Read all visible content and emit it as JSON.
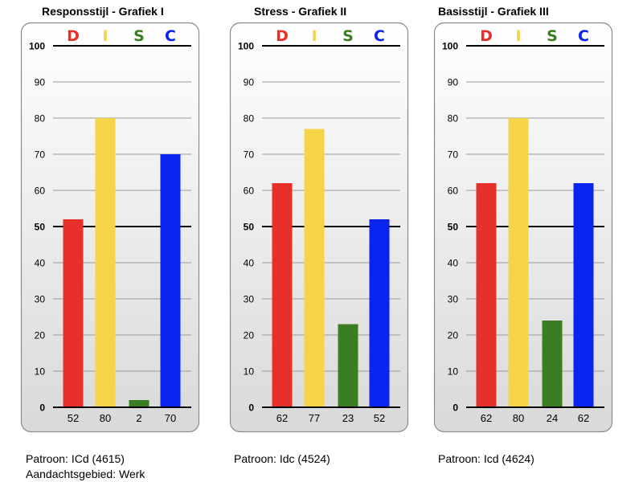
{
  "chart_data": [
    {
      "type": "bar",
      "title": "Responsstijl - Grafiek I",
      "categories": [
        "D",
        "I",
        "S",
        "C"
      ],
      "values": [
        52,
        80,
        2,
        70
      ],
      "value_labels": [
        "52",
        "80",
        "2",
        "70"
      ],
      "ylim": [
        0,
        100
      ],
      "yticks": [
        "0",
        "10",
        "20",
        "30",
        "40",
        "50",
        "60",
        "70",
        "80",
        "90",
        "100"
      ],
      "colors": [
        "#e8302a",
        "#f5d44a",
        "#3a7d22",
        "#0a24f0"
      ],
      "grid": true
    },
    {
      "type": "bar",
      "title": "Stress - Grafiek II",
      "categories": [
        "D",
        "I",
        "S",
        "C"
      ],
      "values": [
        62,
        77,
        23,
        52
      ],
      "value_labels": [
        "62",
        "77",
        "23",
        "52"
      ],
      "ylim": [
        0,
        100
      ],
      "yticks": [
        "0",
        "10",
        "20",
        "30",
        "40",
        "50",
        "60",
        "70",
        "80",
        "90",
        "100"
      ],
      "colors": [
        "#e8302a",
        "#f5d44a",
        "#3a7d22",
        "#0a24f0"
      ],
      "grid": true
    },
    {
      "type": "bar",
      "title": "Basisstijl - Grafiek III",
      "categories": [
        "D",
        "I",
        "S",
        "C"
      ],
      "values": [
        62,
        80,
        24,
        62
      ],
      "value_labels": [
        "62",
        "80",
        "24",
        "62"
      ],
      "ylim": [
        0,
        100
      ],
      "yticks": [
        "0",
        "10",
        "20",
        "30",
        "40",
        "50",
        "60",
        "70",
        "80",
        "90",
        "100"
      ],
      "colors": [
        "#e8302a",
        "#f5d44a",
        "#3a7d22",
        "#0a24f0"
      ],
      "grid": true
    }
  ],
  "footer": {
    "pattern_1": "Patroon: ICd (4615)",
    "focus_1": "Aandachtsgebied: Werk",
    "pattern_2": "Patroon: Idc (4524)",
    "pattern_3": "Patroon: Icd (4624)"
  }
}
